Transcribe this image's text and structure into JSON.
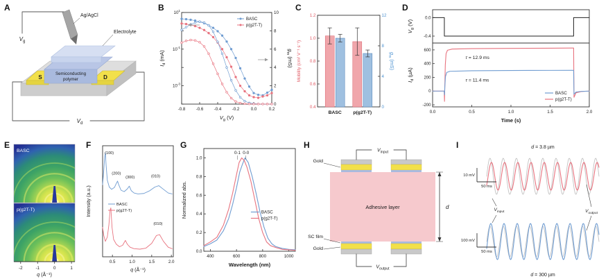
{
  "colors": {
    "basc_blue": "#6f9cd1",
    "basc_blue_dark": "#4d7eb5",
    "pg2tt_red": "#e8737f",
    "pg2tt_red_dark": "#d95f6c",
    "mobility_bar_fill": "#f0a6ab",
    "gm_bar_fill": "#9fc0e0",
    "axis_red": "#e05a64",
    "axis_blue": "#4a90d0",
    "gold": "#f2e04a",
    "gold_edge": "#c9b839",
    "adhesive_pink": "#f6c9cd",
    "sc_film_blue": "#a9bade",
    "substrate_gray": "#c9c9c9",
    "input_wave_gray": "#c2c2c2",
    "giwaxs_stops": [
      [
        0,
        "#f8f8b0"
      ],
      [
        0.08,
        "#f2ee58"
      ],
      [
        0.2,
        "#cfe24e"
      ],
      [
        0.38,
        "#6cc05a"
      ],
      [
        0.55,
        "#3da365"
      ],
      [
        0.72,
        "#2c8b78"
      ],
      [
        0.85,
        "#2f62b0"
      ],
      [
        1,
        "#232f93"
      ]
    ],
    "giwaxs_dark": "#27379b"
  },
  "panels": {
    "a": {
      "label": "A",
      "gate_electrode_label": "Ag/AgCl",
      "electrolyte_label": "Electrolyte",
      "semiconductor_label_line1": "Semiconducting",
      "semiconductor_label_line2": "polymer",
      "source_label": "S",
      "drain_label": "D",
      "gate_voltage_label": [
        "!V",
        "_g"
      ],
      "drain_voltage_label": [
        "!V",
        "_d"
      ]
    },
    "b": {
      "label": "B",
      "chart_data": {
        "type": "line",
        "xlabel": [
          "!V",
          "_g",
          " (V)"
        ],
        "ylabel_left": [
          "!I",
          "_d",
          " (mA)"
        ],
        "ylabel_right": [
          "!g",
          "_m",
          " (mS)"
        ],
        "xlim": [
          -0.8,
          0.2
        ],
        "xticks": [
          -0.8,
          -0.6,
          -0.4,
          -0.2,
          0,
          0.2
        ],
        "ylim_left_log10": [
          -4,
          1
        ],
        "ytick_exponents_left": [
          1,
          -1,
          -3
        ],
        "ylim_right": [
          0,
          10
        ],
        "yticks_right": [
          0,
          2,
          4,
          6,
          8,
          10
        ],
        "legend": [
          "BASC",
          "p(g2T-T)"
        ],
        "x": [
          -0.8,
          -0.75,
          -0.7,
          -0.65,
          -0.6,
          -0.55,
          -0.5,
          -0.45,
          -0.4,
          -0.35,
          -0.3,
          -0.25,
          -0.2,
          -0.15,
          -0.1,
          -0.05,
          0,
          0.05,
          0.1,
          0.15,
          0.2
        ],
        "series": [
          {
            "name": "BASC Id",
            "axis": "left",
            "colorKey": "basc_blue",
            "marker": "filled",
            "y": [
              4.5,
              4.3,
              4.0,
              3.6,
              3.1,
              2.6,
              2.0,
              1.45,
              0.95,
              0.55,
              0.26,
              0.1,
              0.033,
              0.009,
              0.0025,
              0.0009,
              0.0004,
              0.00032,
              0.0003,
              0.00042,
              0.0006
            ]
          },
          {
            "name": "p(g2T-T) Id",
            "axis": "left",
            "colorKey": "pg2tt_red",
            "marker": "filled",
            "y": [
              2.5,
              2.35,
              2.1,
              1.8,
              1.45,
              1.1,
              0.75,
              0.45,
              0.23,
              0.1,
              0.036,
              0.011,
              0.003,
              0.001,
              0.0005,
              0.0003,
              0.00024,
              0.00022,
              0.00026,
              0.0003,
              0.0004
            ]
          },
          {
            "name": "BASC gm",
            "axis": "right",
            "colorKey": "basc_blue",
            "marker": "open",
            "y": [
              8.1,
              8.4,
              8.7,
              8.9,
              9.0,
              8.9,
              8.6,
              7.9,
              6.8,
              5.5,
              4.0,
              2.6,
              1.5,
              0.75,
              0.32,
              0.13,
              0.05,
              0.02,
              0.01,
              0.01,
              0.01
            ]
          },
          {
            "name": "p(g2T-T) gm",
            "axis": "right",
            "colorKey": "pg2tt_red",
            "marker": "open",
            "y": [
              6.7,
              6.9,
              7.0,
              6.95,
              6.75,
              6.3,
              5.5,
              4.4,
              3.3,
              2.2,
              1.3,
              0.65,
              0.28,
              0.11,
              0.04,
              0.02,
              0.01,
              0.01,
              0.005,
              0.005,
              0.005
            ]
          }
        ]
      }
    },
    "c": {
      "label": "C",
      "chart_data": {
        "type": "bar",
        "categories": [
          "BASC",
          "p(g2T-T)"
        ],
        "ylabel_left": "Mobility (cm² V⁻¹ s⁻¹)",
        "ylabel_right": [
          "!g",
          "_m",
          " (mS)"
        ],
        "ylim_left": [
          0.4,
          1.2
        ],
        "yticks_left": [
          0.4,
          0.6,
          0.8,
          1,
          1.2
        ],
        "ylim_right": [
          0,
          12
        ],
        "yticks_right": [
          0,
          4,
          8,
          12
        ],
        "series": [
          {
            "name": "Mobility",
            "axis": "left",
            "values": [
              1.02,
              0.97
            ],
            "errors": [
              0.07,
              0.12
            ]
          },
          {
            "name": "gm",
            "axis": "right",
            "values": [
              9.0,
              7.0
            ],
            "errors": [
              0.5,
              0.45
            ]
          }
        ]
      }
    },
    "d": {
      "label": "D",
      "chart_data": {
        "type": "line",
        "xlabel": "Time (s)",
        "xlim": [
          0,
          2
        ],
        "xticks": [
          0,
          0.5,
          1,
          1.5,
          2
        ],
        "top": {
          "ylabel": [
            "!V",
            "_g",
            " (V)"
          ],
          "ylim": [
            -0.55,
            0.17
          ],
          "yticks": [
            0,
            -0.4
          ],
          "gate_pulse": {
            "x": [
              0,
              0.15,
              0.15,
              1.8,
              1.8,
              2
            ],
            "y": [
              0,
              0,
              -0.4,
              -0.4,
              0,
              0
            ]
          }
        },
        "bottom": {
          "ylabel": [
            "!I",
            "_d",
            " (µA)"
          ],
          "ylim": [
            -230,
            700
          ],
          "yticks": [
            -200,
            0,
            200,
            400,
            600
          ],
          "series": [
            {
              "name": "p(g2T-T)",
              "colorKey": "pg2tt_red",
              "x": [
                0,
                0.148,
                0.152,
                0.156,
                0.162,
                0.172,
                0.19,
                0.25,
                0.5,
                1,
                1.5,
                1.795,
                1.8,
                1.805,
                1.83,
                1.9,
                2
              ],
              "y": [
                0,
                0,
                -150,
                80,
                380,
                545,
                595,
                612,
                618,
                622,
                625,
                627,
                627,
                -90,
                -25,
                -6,
                0
              ]
            },
            {
              "name": "BASC",
              "colorKey": "basc_blue",
              "x": [
                0,
                0.148,
                0.152,
                0.156,
                0.164,
                0.18,
                0.22,
                0.5,
                1,
                1.5,
                1.795,
                1.8,
                1.805,
                1.83,
                1.9,
                2
              ],
              "y": [
                0,
                0,
                -55,
                60,
                210,
                272,
                288,
                296,
                300,
                302,
                303,
                303,
                -45,
                -14,
                -4,
                0
              ]
            }
          ],
          "annotations": [
            {
              "text": [
                "!τ",
                " = 12.9 ms"
              ],
              "x": 0.42,
              "y": 470
            },
            {
              "text": [
                "!τ",
                " = 11.4 ms"
              ],
              "x": 0.42,
              "y": 140
            }
          ],
          "legend": [
            {
              "name": "BASC",
              "colorKey": "basc_blue"
            },
            {
              "name": "p(g2T-T)",
              "colorKey": "pg2tt_red"
            }
          ]
        }
      }
    },
    "e": {
      "label": "E",
      "image_labels": [
        "BASC",
        "p(g2T-T)"
      ],
      "xlabel": [
        "!q",
        " (Å⁻¹)"
      ],
      "xlim": [
        -2.4,
        1.2
      ],
      "xticks": [
        -2,
        -1,
        0,
        1
      ]
    },
    "f": {
      "label": "F",
      "chart_data": {
        "type": "line",
        "xlabel": [
          "!q",
          " (Å⁻¹)"
        ],
        "ylabel": "Intensity (a.u.)",
        "xlim": [
          0.25,
          2.05
        ],
        "xticks": [
          0.5,
          1,
          1.5,
          2
        ],
        "legend": [
          {
            "name": "BASC",
            "colorKey": "basc_blue"
          },
          {
            "name": "p(g2T-T)",
            "colorKey": "pg2tt_red"
          }
        ],
        "series": [
          {
            "name": "BASC",
            "colorKey": "basc_blue",
            "x": [
              0.25,
              0.28,
              0.3,
              0.32,
              0.34,
              0.37,
              0.42,
              0.48,
              0.55,
              0.6,
              0.63,
              0.66,
              0.72,
              0.8,
              0.88,
              0.93,
              0.98,
              1.05,
              1.15,
              1.3,
              1.45,
              1.58,
              1.68,
              1.8,
              1.92,
              2.02
            ],
            "y": [
              0.3,
              0.62,
              0.88,
              1.0,
              0.72,
              0.4,
              0.25,
              0.2,
              0.24,
              0.33,
              0.38,
              0.3,
              0.18,
              0.15,
              0.21,
              0.27,
              0.17,
              0.12,
              0.1,
              0.11,
              0.17,
              0.25,
              0.28,
              0.2,
              0.12,
              0.1
            ]
          },
          {
            "name": "p(g2T-T)",
            "colorKey": "pg2tt_red",
            "x": [
              0.25,
              0.28,
              0.32,
              0.37,
              0.41,
              0.44,
              0.46,
              0.49,
              0.53,
              0.6,
              0.68,
              0.76,
              0.83,
              0.88,
              0.95,
              1.05,
              1.2,
              1.35,
              1.5,
              1.62,
              1.7,
              1.8,
              1.92,
              2.02
            ],
            "y": [
              0.55,
              0.38,
              0.26,
              0.35,
              0.6,
              0.9,
              0.95,
              0.55,
              0.3,
              0.2,
              0.15,
              0.18,
              0.28,
              0.2,
              0.14,
              0.11,
              0.1,
              0.12,
              0.22,
              0.38,
              0.4,
              0.26,
              0.14,
              0.11
            ]
          }
        ],
        "peak_labels": [
          {
            "text": "(100)",
            "curve": 0,
            "x": 0.42,
            "i": 0.97
          },
          {
            "text": "(200)",
            "curve": 0,
            "x": 0.6,
            "i": 0.52
          },
          {
            "text": "(300)",
            "curve": 0,
            "x": 0.95,
            "i": 0.44
          },
          {
            "text": "(010)",
            "curve": 0,
            "x": 1.6,
            "i": 0.46
          },
          {
            "text": "(010)",
            "curve": 1,
            "x": 1.66,
            "i": 0.6
          }
        ]
      }
    },
    "g": {
      "label": "G",
      "chart_data": {
        "type": "line",
        "xlabel": "Wavelength (nm)",
        "ylabel": "Normalized abs.",
        "xlim": [
          350,
          1050
        ],
        "xticks": [
          400,
          600,
          800,
          1000
        ],
        "ylim": [
          0,
          1.1
        ],
        "yticks": [
          0,
          0.2,
          0.4,
          0.6,
          0.8,
          1
        ],
        "annotations": [
          {
            "text": "0-1",
            "x": 607,
            "y": 1.04
          },
          {
            "text": "0-0",
            "x": 672,
            "y": 1.04
          }
        ],
        "legend": [
          {
            "name": "BASC",
            "colorKey": "basc_blue"
          },
          {
            "name": "p(g2T-T)",
            "colorKey": "pg2tt_red"
          }
        ],
        "series": [
          {
            "name": "BASC",
            "colorKey": "basc_blue",
            "x": [
              350,
              400,
              450,
              500,
              540,
              570,
              600,
              625,
              645,
              665,
              690,
              720,
              750,
              780,
              810,
              840,
              870,
              900,
              950,
              1000,
              1050
            ],
            "y": [
              0.05,
              0.08,
              0.12,
              0.22,
              0.35,
              0.5,
              0.68,
              0.85,
              0.93,
              1.0,
              0.95,
              0.8,
              0.62,
              0.42,
              0.26,
              0.14,
              0.08,
              0.05,
              0.03,
              0.02,
              0.015
            ]
          },
          {
            "name": "p(g2T-T)",
            "colorKey": "pg2tt_red",
            "x": [
              350,
              400,
              450,
              500,
              540,
              570,
              600,
              620,
              640,
              660,
              680,
              710,
              740,
              770,
              800,
              830,
              860,
              900,
              950,
              1000,
              1050
            ],
            "y": [
              0.06,
              0.1,
              0.15,
              0.28,
              0.45,
              0.62,
              0.82,
              0.95,
              1.0,
              0.97,
              0.9,
              0.75,
              0.55,
              0.35,
              0.2,
              0.1,
              0.06,
              0.04,
              0.02,
              0.015,
              0.01
            ]
          }
        ]
      }
    },
    "h": {
      "label": "H",
      "gold_top_label": "Gold",
      "adhesive_label": "Adhesive layer",
      "sc_film_label": "SC film",
      "gold_bottom_label": "Gold",
      "v_input_label": [
        "!V",
        "_input"
      ],
      "v_output_label": [
        "!V",
        "_output"
      ],
      "thickness_label": [
        "!d"
      ]
    },
    "i": {
      "label": "I",
      "v_input_label": [
        "!V",
        "_input"
      ],
      "v_output_label": [
        "!V",
        "_output"
      ],
      "traces": [
        {
          "title": [
            "!d",
            " = 3.8 µm"
          ],
          "colorKey": "pg2tt_red",
          "v_scale": "10 mV",
          "t_scale": "50 ms",
          "cycles": 8.5,
          "amp_in": 26,
          "amp_out": 20,
          "phase_lag": 0.7
        },
        {
          "title": [
            "!d",
            " = 300 µm"
          ],
          "colorKey": "basc_blue",
          "v_scale": "100 mV",
          "t_scale": "50 ms",
          "cycles": 8.5,
          "amp_in": 22,
          "amp_out": 26,
          "phase_lag": 0.4
        }
      ]
    }
  }
}
